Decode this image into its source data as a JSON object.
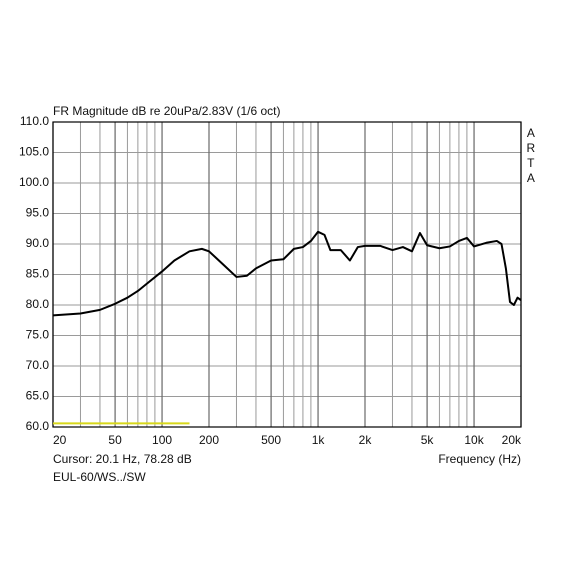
{
  "chart_data": {
    "type": "line",
    "title": "FR Magnitude dB re 20uPa/2.83V (1/6 oct)",
    "watermark": "ARTA",
    "cursor_text": "Cursor: 20.1 Hz, 78.28 dB",
    "file_label": "EUL-60/WS../SW",
    "x_label": "Frequency (Hz)",
    "log_x": true,
    "grid": true,
    "x": [
      20,
      30,
      40,
      50,
      60,
      70,
      80,
      100,
      120,
      150,
      180,
      200,
      250,
      300,
      350,
      400,
      500,
      600,
      700,
      800,
      900,
      1000,
      1100,
      1200,
      1400,
      1600,
      1800,
      2000,
      2500,
      3000,
      3500,
      4000,
      4500,
      5000,
      6000,
      7000,
      8000,
      9000,
      10000,
      12000,
      14000,
      15000,
      16000,
      17000,
      18000,
      19000,
      20000
    ],
    "series": [
      {
        "color": "#000000",
        "values": [
          78.3,
          78.6,
          79.2,
          80.2,
          81.2,
          82.3,
          83.5,
          85.5,
          87.3,
          88.8,
          89.2,
          88.8,
          86.5,
          84.6,
          84.8,
          86.0,
          87.3,
          87.5,
          89.2,
          89.5,
          90.5,
          92.0,
          91.5,
          89.0,
          89.0,
          87.3,
          89.5,
          89.7,
          89.7,
          89.0,
          89.5,
          88.8,
          91.8,
          89.8,
          89.3,
          89.6,
          90.5,
          91.0,
          89.6,
          90.2,
          90.5,
          90.0,
          86.0,
          80.5,
          80.0,
          81.2,
          80.8
        ]
      }
    ],
    "marker": {
      "color": "#d8d81a",
      "x": [
        20,
        150
      ],
      "values": [
        60.6,
        60.6
      ]
    },
    "xlim": [
      20,
      20000
    ],
    "ylim": [
      60,
      110
    ],
    "xticks": [
      20,
      50,
      100,
      200,
      500,
      {
        "value": 1000,
        "label": "1k"
      },
      {
        "value": 2000,
        "label": "2k"
      },
      {
        "value": 5000,
        "label": "5k"
      },
      {
        "value": 10000,
        "label": "10k"
      },
      {
        "value": 20000,
        "label": "20k"
      }
    ],
    "yticks": [
      {
        "value": 60,
        "label": "60.0"
      },
      {
        "value": 65,
        "label": "65.0"
      },
      {
        "value": 70,
        "label": "70.0"
      },
      {
        "value": 75,
        "label": "75.0"
      },
      {
        "value": 80,
        "label": "80.0"
      },
      {
        "value": 85,
        "label": "85.0"
      },
      {
        "value": 90,
        "label": "90.0"
      },
      {
        "value": 95,
        "label": "95.0"
      },
      {
        "value": 100,
        "label": "100.0"
      },
      {
        "value": 105,
        "label": "105.0"
      },
      {
        "value": 110,
        "label": "110.0"
      }
    ]
  }
}
